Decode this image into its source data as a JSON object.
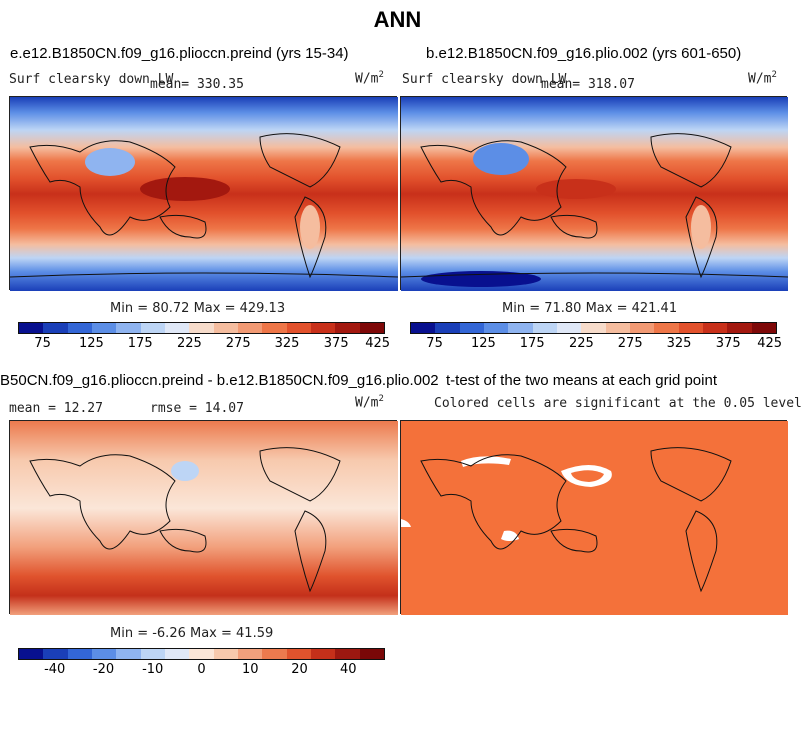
{
  "title": "ANN",
  "panels": [
    {
      "id": "p1",
      "case_title": "e.e12.B1850CN.f09_g16.plioccn.preind (yrs 15-34)",
      "variable": "Surf clearsky down LW",
      "mean_label": "mean= 330.35",
      "units_base": "W/m",
      "units_exp": "2",
      "minmax": "Min =  80.72 Max = 429.13",
      "colorbar_ticks": [
        "75",
        "125",
        "175",
        "225",
        "275",
        "325",
        "375",
        "425"
      ]
    },
    {
      "id": "p2",
      "case_title": "b.e12.B1850CN.f09_g16.plio.002 (yrs 601-650)",
      "variable": "Surf clearsky down LW",
      "mean_label": "mean= 318.07",
      "units_base": "W/m",
      "units_exp": "2",
      "minmax": "Min =  71.80 Max = 421.41",
      "colorbar_ticks": [
        "75",
        "125",
        "175",
        "225",
        "275",
        "325",
        "375",
        "425"
      ]
    },
    {
      "id": "p3",
      "case_title": "B50CN.f09_g16.plioccn.preind - b.e12.B1850CN.f09_g16.plio.002",
      "mean_label": "mean =  12.27",
      "rmse_label": "rmse =  14.07",
      "units_base": "W/m",
      "units_exp": "2",
      "minmax": "Min =  -6.26 Max =  41.59",
      "colorbar_ticks": [
        "-40",
        "-20",
        "-10",
        "0",
        "10",
        "20",
        "40"
      ]
    },
    {
      "id": "p4",
      "case_title": "t-test of the two means at each grid point",
      "subtitle": "Colored cells are significant at the 0.05 level"
    }
  ],
  "colors": {
    "abs_scale": [
      "#08108f",
      "#1a3fb8",
      "#3366d6",
      "#5c8ee6",
      "#8fb4f0",
      "#bdd5f5",
      "#e0e8f7",
      "#f7dccb",
      "#f5bd9f",
      "#f29a74",
      "#ee7648",
      "#e2512c",
      "#c8301a",
      "#a3180f",
      "#7e0808"
    ],
    "diff_scale": [
      "#08108f",
      "#1a3fb8",
      "#3366d6",
      "#5c8ee6",
      "#8fb4f0",
      "#bdd5f5",
      "#e0e8f7",
      "#fbe6d8",
      "#f7c9ad",
      "#f2a07c",
      "#ec7a4e",
      "#e0532d",
      "#c4301a",
      "#9c1810",
      "#7a0808"
    ],
    "ttest_fill": "#f4713a"
  }
}
